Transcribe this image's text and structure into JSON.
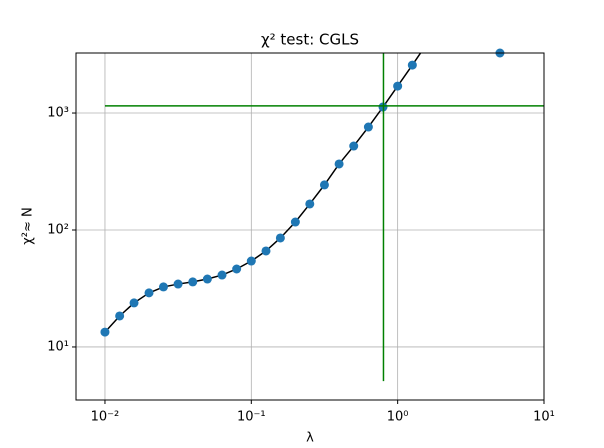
{
  "chart_data": {
    "type": "line",
    "title": "χ² test: CGLS",
    "x_label": "λ",
    "y_label": "χ²≈ N",
    "x": [
      0.01,
      0.0126,
      0.0158,
      0.02,
      0.0251,
      0.0316,
      0.0398,
      0.0501,
      0.0631,
      0.0794,
      0.1,
      0.126,
      0.158,
      0.2,
      0.251,
      0.316,
      0.398,
      0.501,
      0.631,
      0.794,
      1.0,
      1.26,
      1.58
    ],
    "series": [
      {
        "color": "#1f77b4",
        "line_color": "#000000",
        "values": [
          13.4,
          18.4,
          23.8,
          29.0,
          32.6,
          34.5,
          36.0,
          38.1,
          41.2,
          46.4,
          54.3,
          66.2,
          85.5,
          117,
          167,
          243,
          367,
          522,
          759,
          1125,
          1700,
          2570,
          3900
        ]
      }
    ],
    "extra_points": {
      "x": [
        5.0
      ],
      "values": [
        3260
      ],
      "color": "#1f77b4"
    },
    "hline": {
      "y": 1150,
      "xmin": 0.01,
      "xmax": 10,
      "color": "#008000"
    },
    "vline": {
      "x": 0.8,
      "ymin": 5.1,
      "ymax": 3260,
      "color": "#008000"
    },
    "x_log": true,
    "y_log": true,
    "grid": true,
    "xlim": [
      0.00634,
      10
    ],
    "ylim": [
      3.52,
      3260
    ],
    "xticks": [
      {
        "value": 0.01,
        "label": "10⁻²"
      },
      {
        "value": 0.1,
        "label": "10⁻¹"
      },
      {
        "value": 1,
        "label": "10⁰"
      },
      {
        "value": 10,
        "label": "10¹"
      }
    ],
    "yticks": [
      {
        "value": 10,
        "label": "10¹"
      },
      {
        "value": 100,
        "label": "10²"
      },
      {
        "value": 1000,
        "label": "10³"
      }
    ]
  }
}
